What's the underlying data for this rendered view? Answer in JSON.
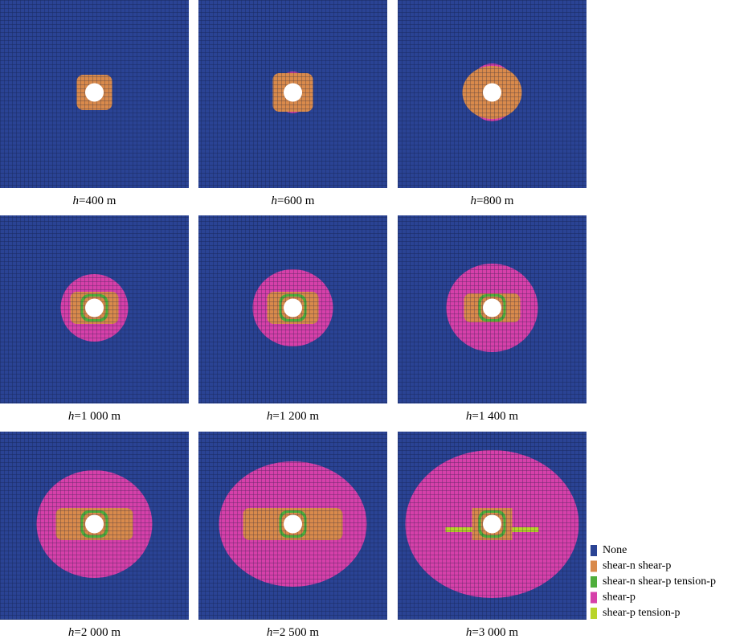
{
  "panels": [
    {
      "variable": "h",
      "text": "=400 m"
    },
    {
      "variable": "h",
      "text": "=600 m"
    },
    {
      "variable": "h",
      "text": "=800 m"
    },
    {
      "variable": "h",
      "text": "=1 000 m"
    },
    {
      "variable": "h",
      "text": "=1 200 m"
    },
    {
      "variable": "h",
      "text": "=1 400 m"
    },
    {
      "variable": "h",
      "text": "=2 000 m"
    },
    {
      "variable": "h",
      "text": "=2 500 m"
    },
    {
      "variable": "h",
      "text": "=3 000 m"
    }
  ],
  "legend": [
    {
      "label": "None",
      "color": "#2a4394"
    },
    {
      "label": "shear-n shear-p",
      "color": "#d98a4c"
    },
    {
      "label": "shear-n shear-p tension-p",
      "color": "#4fae3c"
    },
    {
      "label": "shear-p",
      "color": "#d640aa"
    },
    {
      "label": "shear-p tension-p",
      "color": "#b9d42a"
    }
  ]
}
